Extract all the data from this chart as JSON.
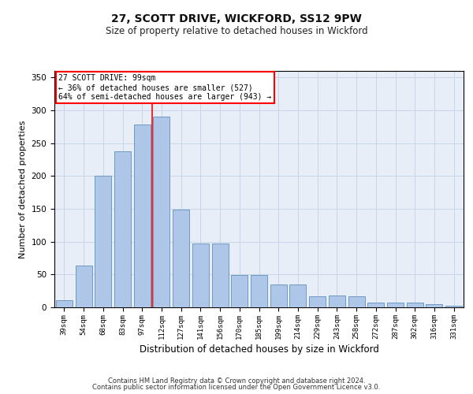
{
  "title1": "27, SCOTT DRIVE, WICKFORD, SS12 9PW",
  "title2": "Size of property relative to detached houses in Wickford",
  "xlabel": "Distribution of detached houses by size in Wickford",
  "ylabel": "Number of detached properties",
  "categories": [
    "39sqm",
    "54sqm",
    "68sqm",
    "83sqm",
    "97sqm",
    "112sqm",
    "127sqm",
    "141sqm",
    "156sqm",
    "170sqm",
    "185sqm",
    "199sqm",
    "214sqm",
    "229sqm",
    "243sqm",
    "258sqm",
    "272sqm",
    "287sqm",
    "302sqm",
    "316sqm",
    "331sqm"
  ],
  "values": [
    11,
    64,
    200,
    238,
    278,
    290,
    149,
    97,
    97,
    49,
    49,
    35,
    35,
    17,
    18,
    17,
    7,
    7,
    7,
    5,
    3
  ],
  "bar_color": "#aec6e8",
  "bar_edge_color": "#6090bb",
  "grid_color": "#c8d4e8",
  "background_color": "#e8eef8",
  "vline_color": "red",
  "vline_pos": 4.5,
  "annotation_text": "27 SCOTT DRIVE: 99sqm\n← 36% of detached houses are smaller (527)\n64% of semi-detached houses are larger (943) →",
  "annotation_box_color": "white",
  "annotation_box_edge_color": "red",
  "footer1": "Contains HM Land Registry data © Crown copyright and database right 2024.",
  "footer2": "Contains public sector information licensed under the Open Government Licence v3.0.",
  "ylim": [
    0,
    360
  ],
  "yticks": [
    0,
    50,
    100,
    150,
    200,
    250,
    300,
    350
  ],
  "title1_fontsize": 10,
  "title2_fontsize": 8.5,
  "ylabel_fontsize": 8,
  "xlabel_fontsize": 8.5
}
